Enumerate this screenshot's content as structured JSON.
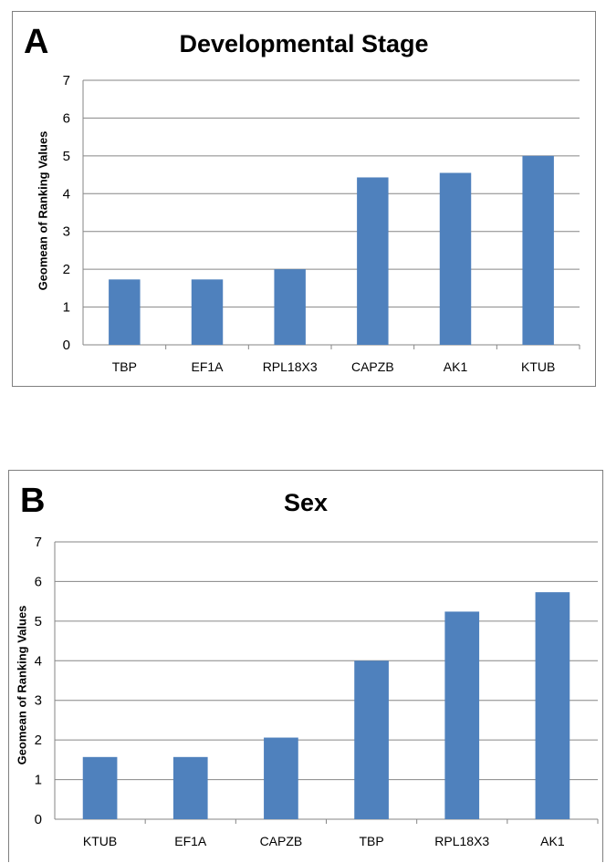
{
  "chart_data": [
    {
      "panel": "A",
      "type": "bar",
      "title": "Developmental Stage",
      "ylabel": "Geomean of Ranking Values",
      "xlabel": "",
      "categories": [
        "TBP",
        "EF1A",
        "RPL18X3",
        "CAPZB",
        "AK1",
        "KTUB"
      ],
      "values": [
        1.73,
        1.73,
        2.0,
        4.43,
        4.55,
        5.0
      ],
      "ylim": [
        0,
        7
      ],
      "yticks": [
        "0",
        "1",
        "2",
        "3",
        "4",
        "5",
        "6",
        "7"
      ],
      "grid": true,
      "legend": "none",
      "bar_color": "#4f81bd"
    },
    {
      "panel": "B",
      "type": "bar",
      "title": "Sex",
      "ylabel": "Geomean of Ranking Values",
      "xlabel": "",
      "categories": [
        "KTUB",
        "EF1A",
        "CAPZB",
        "TBP",
        "RPL18X3",
        "AK1"
      ],
      "values": [
        1.57,
        1.57,
        2.06,
        4.0,
        5.24,
        5.73
      ],
      "ylim": [
        0,
        7
      ],
      "yticks": [
        "0",
        "1",
        "2",
        "3",
        "4",
        "5",
        "6",
        "7"
      ],
      "grid": true,
      "legend": "none",
      "bar_color": "#4f81bd"
    }
  ]
}
